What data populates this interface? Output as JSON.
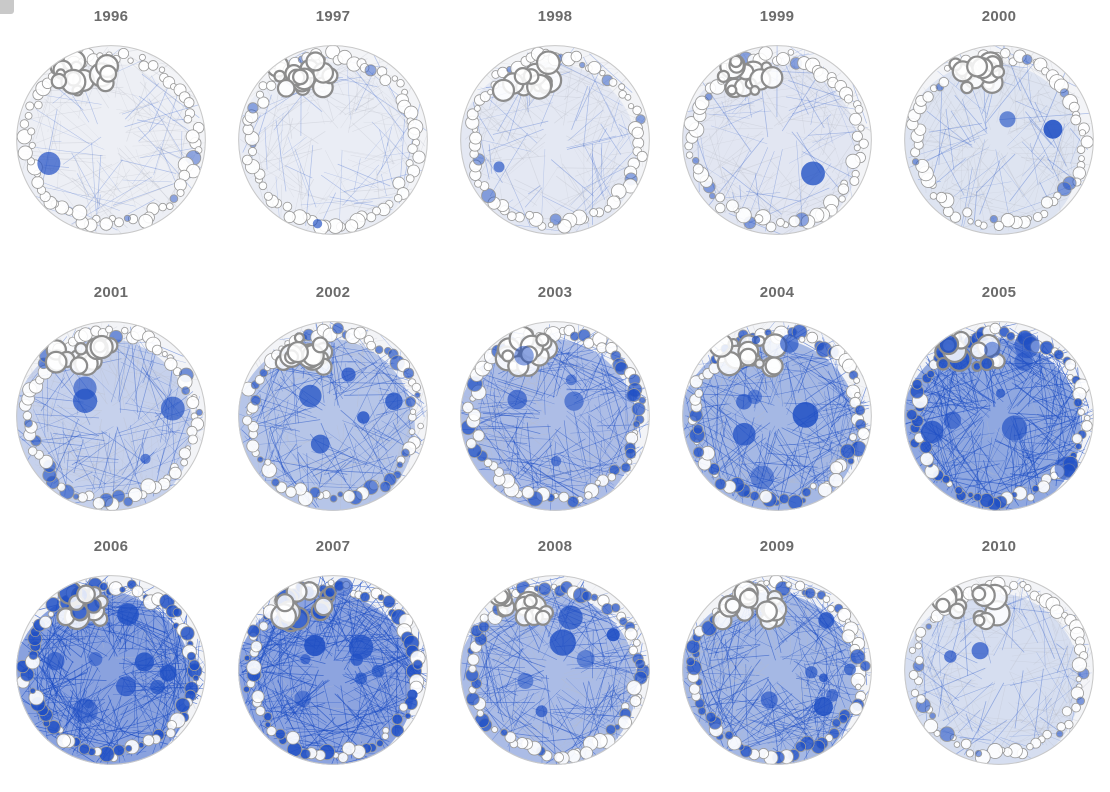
{
  "years": [
    "1996",
    "1997",
    "1998",
    "1999",
    "2000",
    "2001",
    "2002",
    "2003",
    "2004",
    "2005",
    "2006",
    "2007",
    "2008",
    "2009",
    "2010"
  ],
  "intensity": [
    0.05,
    0.07,
    0.12,
    0.14,
    0.18,
    0.38,
    0.52,
    0.6,
    0.66,
    0.84,
    0.9,
    0.88,
    0.62,
    0.66,
    0.24
  ],
  "colors": {
    "network": "#1f4fc4",
    "outline": "#9a9a9a",
    "label": "#6b6b6b"
  }
}
